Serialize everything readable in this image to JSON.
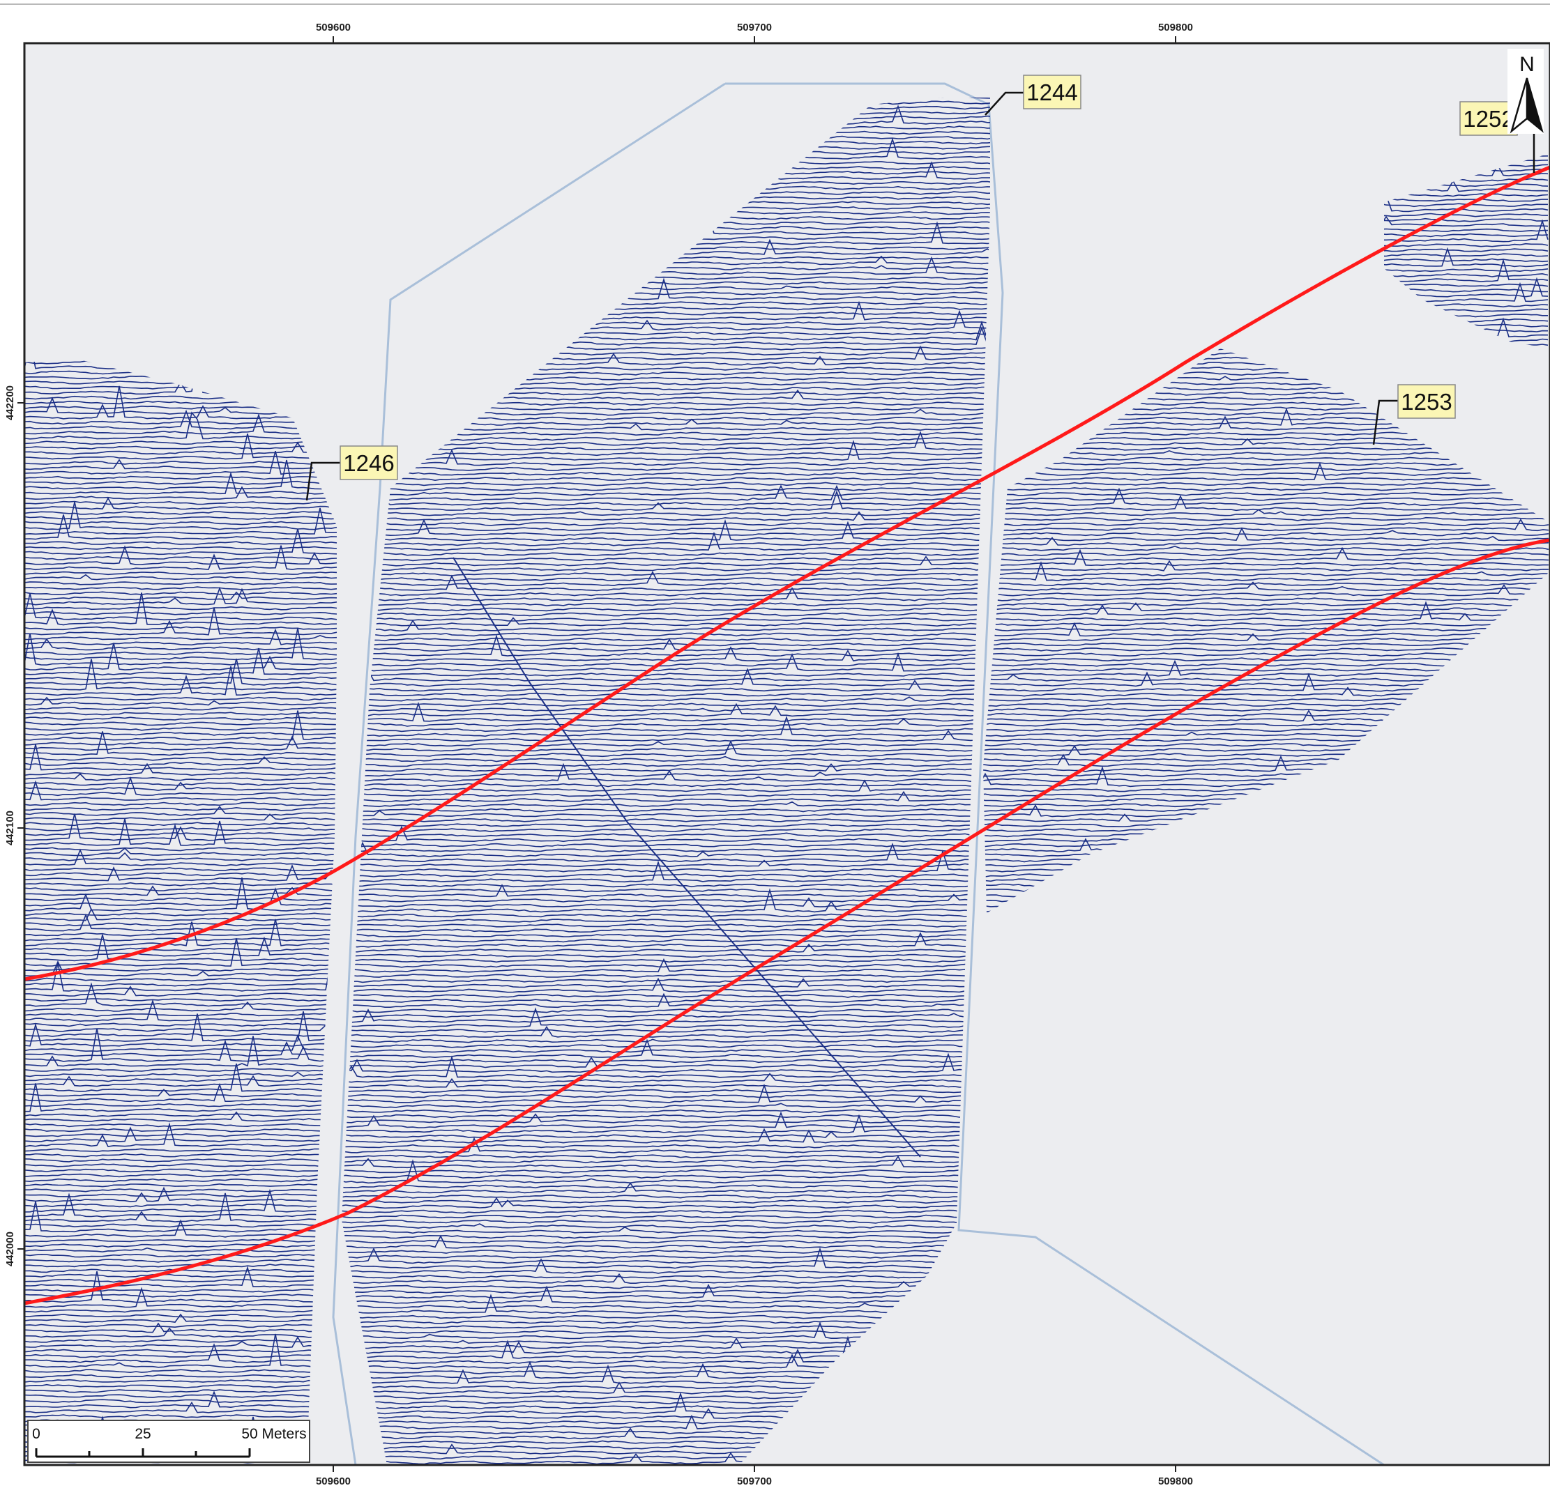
{
  "map": {
    "colors": {
      "background": "#ecedf0",
      "trace": "#1b2f86",
      "route": "#ff1a1a",
      "boundary": "#a9bfd9",
      "callout_fill": "#fbf6b5"
    },
    "x_ticks": [
      "509600",
      "509700",
      "509800"
    ],
    "y_ticks": [
      "442200",
      "442100",
      "442000"
    ],
    "callouts": [
      "1244",
      "1246",
      "1252",
      "1253"
    ],
    "north_arrow": {
      "label": "N",
      "icon": "north-arrow-icon"
    },
    "scale_bar": {
      "labels": [
        "0",
        "25",
        "50 Meters"
      ]
    },
    "layers": [
      "survey-grid-1244",
      "survey-grid-1246",
      "survey-grid-1252",
      "survey-grid-1253",
      "route-lines",
      "boundary-line"
    ]
  }
}
